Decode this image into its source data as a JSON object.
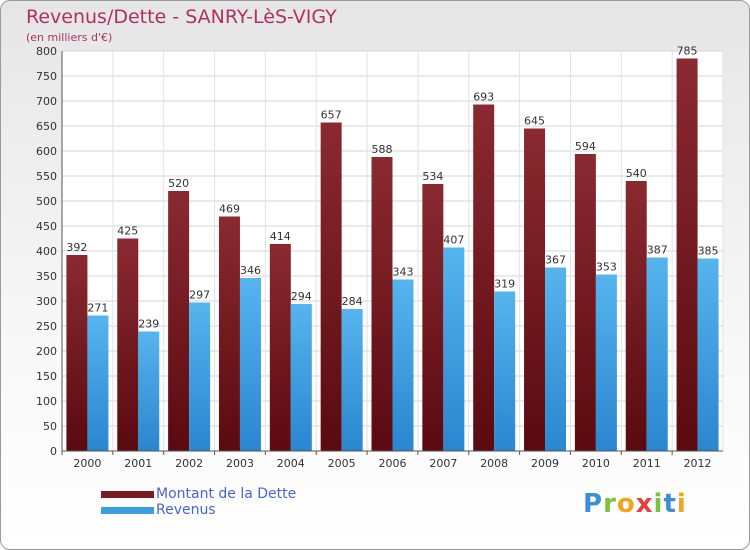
{
  "title": "Revenus/Dette - SANRY-LèS-VIGY",
  "subtitle": "(en milliers d'€)",
  "logo": {
    "letters": [
      "P",
      "r",
      "o",
      "x",
      "i",
      "t",
      "i"
    ],
    "colors": [
      "#3a8fd8",
      "#7cc23c",
      "#f2a41c",
      "#e8403a",
      "#7cc23c",
      "#3a8fd8",
      "#f2a41c"
    ]
  },
  "colors": {
    "dette": "#7a1a22",
    "revenus": "#3d9fe3",
    "title": "#b03060"
  },
  "chart_data": {
    "type": "bar",
    "categories": [
      "2000",
      "2001",
      "2002",
      "2003",
      "2004",
      "2005",
      "2006",
      "2007",
      "2008",
      "2009",
      "2010",
      "2011",
      "2012"
    ],
    "series": [
      {
        "name": "Montant de la Dette",
        "values": [
          392,
          425,
          520,
          469,
          414,
          657,
          588,
          534,
          693,
          645,
          594,
          540,
          785
        ]
      },
      {
        "name": "Revenus",
        "values": [
          271,
          239,
          297,
          346,
          294,
          284,
          343,
          407,
          319,
          367,
          353,
          387,
          385
        ]
      }
    ],
    "yticks": [
      0,
      50,
      100,
      150,
      200,
      250,
      300,
      350,
      400,
      450,
      500,
      550,
      600,
      650,
      700,
      750,
      800
    ],
    "ylim": [
      0,
      800
    ],
    "grid": true,
    "legend_position": "bottom-left"
  }
}
